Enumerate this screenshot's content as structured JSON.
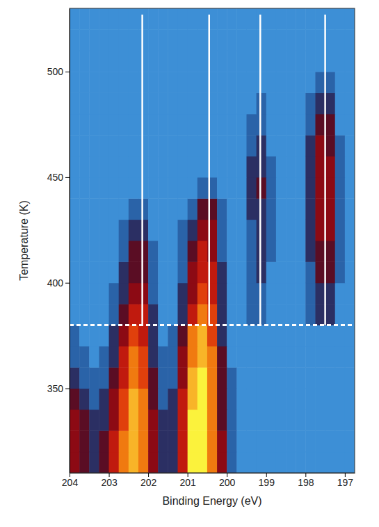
{
  "chart_data": {
    "type": "heatmap",
    "x_label": "Binding Energy (eV)",
    "y_label": "Temperature (K)",
    "xlim": [
      204,
      196.75
    ],
    "ylim": [
      310,
      530
    ],
    "xticks": [
      204,
      203,
      202,
      201,
      200,
      199,
      198,
      197
    ],
    "yticks": [
      350,
      400,
      450,
      500
    ],
    "zlim": [
      0,
      10
    ],
    "x": [
      203.875,
      203.625,
      203.375,
      203.125,
      202.875,
      202.625,
      202.375,
      202.125,
      201.875,
      201.625,
      201.375,
      201.125,
      200.875,
      200.625,
      200.375,
      200.125,
      199.875,
      199.625,
      199.375,
      199.125,
      198.875,
      198.625,
      198.375,
      198.125,
      197.875,
      197.625,
      197.375,
      197.125,
      196.875
    ],
    "y": [
      315,
      325,
      335,
      345,
      355,
      365,
      375,
      385,
      395,
      405,
      415,
      425,
      435,
      445,
      455,
      465,
      475,
      485,
      495,
      505,
      515,
      525
    ],
    "z": [
      [
        5,
        4,
        3,
        4,
        6,
        8,
        9,
        8,
        5,
        3,
        3,
        6,
        10,
        10,
        8,
        5,
        2,
        1,
        1,
        1,
        1,
        1,
        1,
        1,
        1,
        1,
        1,
        1,
        1
      ],
      [
        5,
        4,
        3,
        4,
        6,
        8,
        9,
        8,
        5,
        3,
        3,
        6,
        10,
        10,
        8,
        5,
        2,
        1,
        1,
        1,
        1,
        1,
        1,
        1,
        1,
        1,
        1,
        1,
        1
      ],
      [
        5,
        4,
        3,
        3,
        5,
        7,
        9,
        8,
        5,
        3,
        3,
        6,
        10,
        10,
        8,
        4,
        2,
        1,
        1,
        1,
        1,
        1,
        1,
        1,
        1,
        1,
        1,
        1,
        1
      ],
      [
        4,
        3,
        2,
        3,
        5,
        7,
        9,
        8,
        4,
        2,
        3,
        6,
        9,
        10,
        8,
        4,
        2,
        1,
        1,
        1,
        1,
        1,
        1,
        1,
        1,
        1,
        1,
        1,
        1
      ],
      [
        3,
        2,
        2,
        2,
        4,
        6,
        8,
        7,
        4,
        2,
        2,
        5,
        9,
        10,
        8,
        4,
        2,
        1,
        1,
        1,
        1,
        1,
        1,
        1,
        1,
        1,
        1,
        1,
        1
      ],
      [
        2,
        2,
        1,
        2,
        3,
        6,
        8,
        7,
        3,
        2,
        2,
        5,
        8,
        9,
        8,
        4,
        1,
        1,
        1,
        1,
        1,
        1,
        1,
        1,
        1,
        1,
        1,
        1,
        1
      ],
      [
        2,
        1,
        1,
        1,
        3,
        5,
        7,
        6,
        3,
        1,
        2,
        4,
        8,
        9,
        7,
        3,
        1,
        1,
        1,
        1,
        1,
        1,
        1,
        1,
        1,
        1,
        1,
        1,
        1
      ],
      [
        1,
        1,
        1,
        1,
        2,
        4,
        6,
        6,
        3,
        1,
        1,
        3,
        6,
        8,
        7,
        3,
        1,
        1,
        2,
        2,
        1,
        1,
        1,
        1,
        2,
        3,
        3,
        1,
        1
      ],
      [
        1,
        1,
        1,
        1,
        2,
        3,
        5,
        5,
        2,
        1,
        1,
        3,
        5,
        7,
        6,
        3,
        1,
        1,
        2,
        2,
        1,
        1,
        1,
        1,
        2,
        3,
        3,
        1,
        1
      ],
      [
        1,
        1,
        1,
        1,
        1,
        3,
        4,
        4,
        2,
        1,
        1,
        2,
        5,
        6,
        6,
        3,
        1,
        1,
        2,
        3,
        1,
        1,
        1,
        1,
        2,
        4,
        4,
        2,
        1
      ],
      [
        1,
        1,
        1,
        1,
        1,
        2,
        4,
        4,
        2,
        1,
        1,
        2,
        4,
        6,
        5,
        2,
        1,
        1,
        2,
        3,
        2,
        1,
        1,
        1,
        3,
        4,
        4,
        2,
        1
      ],
      [
        1,
        1,
        1,
        1,
        1,
        2,
        3,
        3,
        1,
        1,
        1,
        2,
        3,
        5,
        5,
        2,
        1,
        1,
        2,
        3,
        2,
        1,
        1,
        1,
        3,
        5,
        5,
        2,
        1
      ],
      [
        1,
        1,
        1,
        1,
        1,
        1,
        2,
        2,
        1,
        1,
        1,
        1,
        2,
        4,
        4,
        2,
        1,
        1,
        3,
        3,
        2,
        1,
        1,
        1,
        3,
        5,
        5,
        2,
        1
      ],
      [
        1,
        1,
        1,
        1,
        1,
        1,
        1,
        1,
        1,
        1,
        1,
        1,
        1,
        2,
        2,
        1,
        1,
        1,
        3,
        4,
        2,
        1,
        1,
        1,
        3,
        5,
        5,
        2,
        1
      ],
      [
        1,
        1,
        1,
        1,
        1,
        1,
        1,
        1,
        1,
        1,
        1,
        1,
        1,
        1,
        1,
        1,
        1,
        1,
        3,
        3,
        2,
        1,
        1,
        1,
        3,
        5,
        5,
        2,
        1
      ],
      [
        1,
        1,
        1,
        1,
        1,
        1,
        1,
        1,
        1,
        1,
        1,
        1,
        1,
        1,
        1,
        1,
        1,
        1,
        2,
        3,
        1,
        1,
        1,
        1,
        3,
        5,
        4,
        2,
        1
      ],
      [
        1,
        1,
        1,
        1,
        1,
        1,
        1,
        1,
        1,
        1,
        1,
        1,
        1,
        1,
        1,
        1,
        1,
        1,
        2,
        2,
        1,
        1,
        1,
        1,
        2,
        4,
        4,
        1,
        1
      ],
      [
        1,
        1,
        1,
        1,
        1,
        1,
        1,
        1,
        1,
        1,
        1,
        1,
        1,
        1,
        1,
        1,
        1,
        1,
        1,
        2,
        1,
        1,
        1,
        1,
        2,
        3,
        3,
        1,
        1
      ],
      [
        1,
        1,
        1,
        1,
        1,
        1,
        1,
        1,
        1,
        1,
        1,
        1,
        1,
        1,
        1,
        1,
        1,
        1,
        1,
        1,
        1,
        1,
        1,
        1,
        1,
        2,
        2,
        1,
        1
      ],
      [
        1,
        1,
        1,
        1,
        1,
        1,
        1,
        1,
        1,
        1,
        1,
        1,
        1,
        1,
        1,
        1,
        1,
        1,
        1,
        1,
        1,
        1,
        1,
        1,
        1,
        1,
        1,
        1,
        1
      ],
      [
        1,
        1,
        1,
        1,
        1,
        1,
        1,
        1,
        1,
        1,
        1,
        1,
        1,
        1,
        1,
        1,
        1,
        1,
        1,
        1,
        1,
        1,
        1,
        1,
        1,
        1,
        1,
        1,
        1
      ],
      [
        1,
        1,
        1,
        1,
        1,
        1,
        1,
        1,
        1,
        1,
        1,
        1,
        1,
        1,
        1,
        1,
        1,
        1,
        1,
        1,
        1,
        1,
        1,
        1,
        1,
        1,
        1,
        1,
        1
      ]
    ],
    "vlines": [
      202.15,
      200.45,
      199.15,
      197.5
    ],
    "vline_range": [
      380,
      527
    ],
    "hline": 380
  }
}
